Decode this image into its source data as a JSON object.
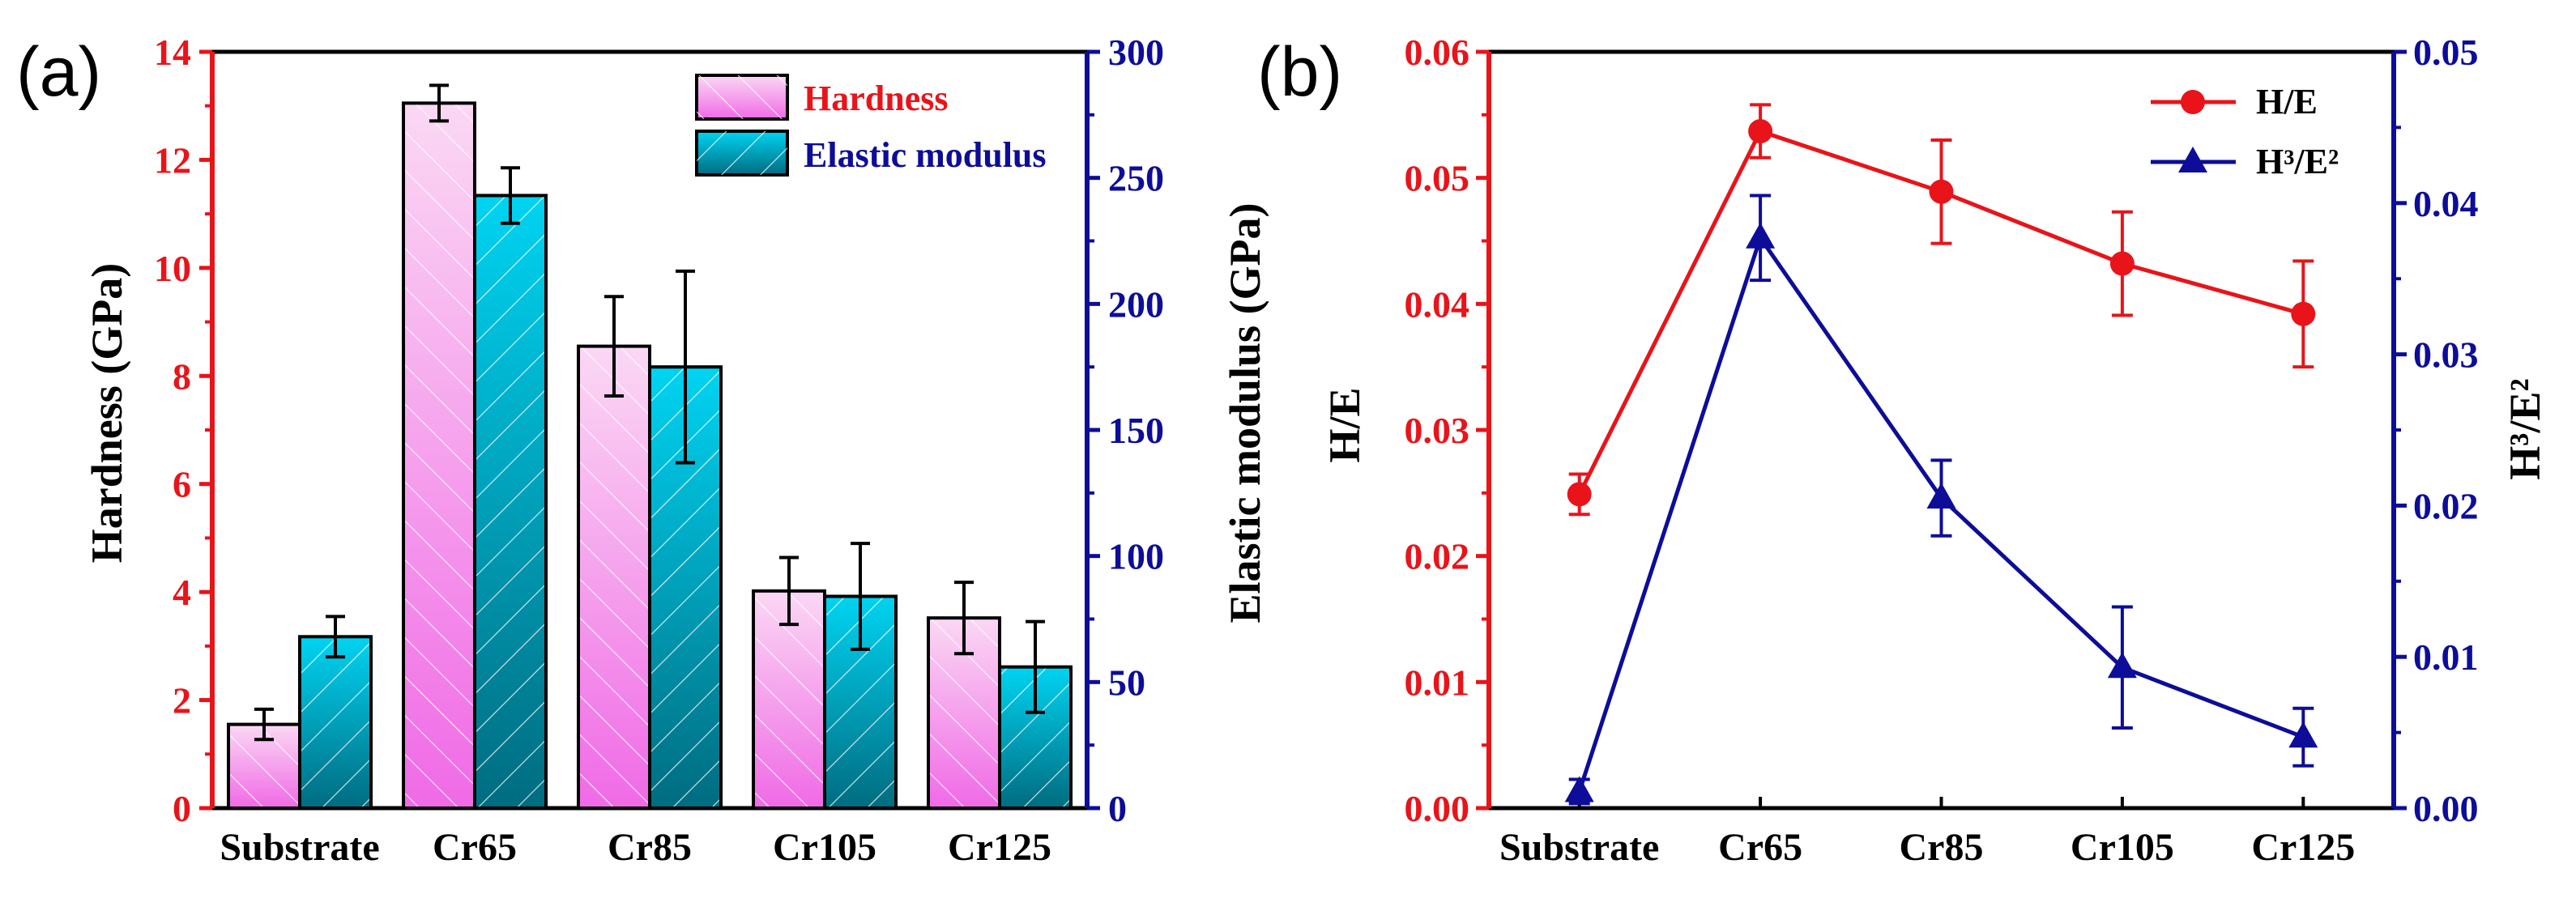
{
  "panel_a": {
    "panel_label": "(a)",
    "chart_data": {
      "type": "bar",
      "categories": [
        "Substrate",
        "Cr65",
        "Cr85",
        "Cr105",
        "Cr125"
      ],
      "series": [
        {
          "name": "Hardness",
          "axis": "left",
          "values": [
            1.55,
            13.05,
            8.55,
            4.02,
            3.52
          ],
          "errors": [
            0.28,
            0.33,
            0.92,
            0.62,
            0.66
          ]
        },
        {
          "name": "Elastic modulus",
          "axis": "right",
          "values": [
            68,
            243,
            175,
            84,
            56
          ],
          "errors": [
            8,
            11,
            38,
            21,
            18
          ]
        }
      ],
      "ylabel_left": "Hardness (GPa)",
      "ylabel_right": "Elastic modulus (GPa)",
      "ylim_left": [
        0,
        14
      ],
      "ylim_right": [
        0,
        300
      ],
      "yticks_left": [
        0,
        2,
        4,
        6,
        8,
        10,
        12,
        14
      ],
      "yticks_right": [
        0,
        50,
        100,
        150,
        200,
        250,
        300
      ],
      "legend_position": "top-right",
      "grid": false
    }
  },
  "panel_b": {
    "panel_label": "(b)",
    "chart_data": {
      "type": "line",
      "categories": [
        "Substrate",
        "Cr65",
        "Cr85",
        "Cr105",
        "Cr125"
      ],
      "series": [
        {
          "name": "H/E",
          "axis": "left",
          "marker": "circle",
          "values": [
            0.0249,
            0.0537,
            0.0489,
            0.0432,
            0.0392
          ],
          "errors": [
            0.0016,
            0.0021,
            0.0041,
            0.0041,
            0.0042
          ]
        },
        {
          "name": "H³/E²",
          "axis": "right",
          "marker": "triangle",
          "values": [
            0.0011,
            0.0377,
            0.0205,
            0.0093,
            0.0047
          ],
          "errors": [
            0.0008,
            0.0028,
            0.0025,
            0.004,
            0.0019
          ]
        }
      ],
      "ylabel_left": "H/E",
      "ylabel_right": "H³/E²",
      "ylim_left": [
        0,
        0.06
      ],
      "ylim_right": [
        0,
        0.05
      ],
      "yticks_left": [
        "0.00",
        "0.01",
        "0.02",
        "0.03",
        "0.04",
        "0.05",
        "0.06"
      ],
      "yticks_right": [
        "0.00",
        "0.01",
        "0.02",
        "0.03",
        "0.04",
        "0.05"
      ],
      "legend_position": "top-right",
      "grid": false
    }
  },
  "colors": {
    "left_axis": "#e8141a",
    "right_axis": "#0d0d99",
    "line_he": "#e8141a",
    "line_h3e2": "#0d0d99",
    "hardness_fill_top": "#fbd8f4",
    "hardness_fill_bottom": "#f06ae6",
    "modulus_fill_top": "#00d4f2",
    "modulus_fill_bottom": "#006c80"
  }
}
